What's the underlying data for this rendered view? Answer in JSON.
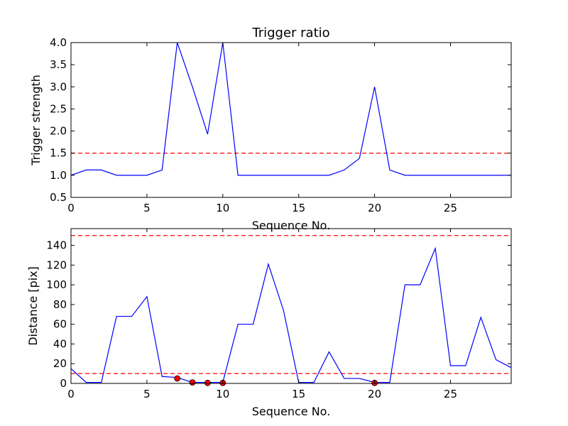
{
  "chart_data": [
    {
      "type": "line",
      "title": "Trigger ratio",
      "xlabel": "Sequence No.",
      "ylabel": "Trigger strength",
      "xlim": [
        0,
        29
      ],
      "ylim": [
        0.5,
        4.0
      ],
      "xticks": [
        "0",
        "5",
        "10",
        "15",
        "20",
        "25"
      ],
      "yticks": [
        "0.5",
        "1.0",
        "1.5",
        "2.0",
        "2.5",
        "3.0",
        "3.5",
        "4.0"
      ],
      "grid": false,
      "series": [
        {
          "color": "#0000ff",
          "x": [
            0,
            1,
            2,
            3,
            4,
            5,
            6,
            7,
            8,
            9,
            10,
            11,
            12,
            13,
            14,
            15,
            16,
            17,
            18,
            19,
            20,
            21,
            22,
            23,
            24,
            25,
            26,
            27,
            28,
            29
          ],
          "y": [
            1.0,
            1.12,
            1.12,
            1.0,
            1.0,
            1.0,
            1.12,
            4.0,
            3.0,
            1.93,
            4.0,
            1.0,
            1.0,
            1.0,
            1.0,
            1.0,
            1.0,
            1.0,
            1.12,
            1.38,
            3.0,
            1.12,
            1.0,
            1.0,
            1.0,
            1.0,
            1.0,
            1.0,
            1.0,
            1.0
          ]
        }
      ],
      "hlines": [
        {
          "y": 1.5,
          "color": "#ff0000",
          "style": "dashed"
        }
      ]
    },
    {
      "type": "line",
      "title": "",
      "xlabel": "Sequence No.",
      "ylabel": "Distance [pix]",
      "xlim": [
        0,
        29
      ],
      "ylim": [
        0,
        157
      ],
      "xticks": [
        "0",
        "5",
        "10",
        "15",
        "20",
        "25"
      ],
      "yticks": [
        "0",
        "20",
        "40",
        "60",
        "80",
        "100",
        "120",
        "140"
      ],
      "grid": false,
      "series": [
        {
          "color": "#0000ff",
          "x": [
            0,
            1,
            2,
            3,
            4,
            5,
            6,
            7,
            8,
            9,
            10,
            11,
            12,
            13,
            14,
            15,
            16,
            17,
            18,
            19,
            20,
            21,
            22,
            23,
            24,
            25,
            26,
            27,
            28,
            29
          ],
          "y": [
            15,
            1,
            1,
            68,
            68,
            88,
            7,
            6,
            1,
            1,
            1,
            60,
            60,
            121,
            74,
            1,
            1,
            32,
            5,
            5,
            1,
            1,
            100,
            100,
            137,
            18,
            18,
            67,
            24,
            16
          ]
        }
      ],
      "points": {
        "color": "#ff0000",
        "x": [
          7,
          8,
          9,
          10,
          20
        ],
        "y": [
          5,
          1,
          0.5,
          0.5,
          0.5
        ]
      },
      "hlines": [
        {
          "y": 150,
          "color": "#ff0000",
          "style": "dashed"
        },
        {
          "y": 10,
          "color": "#ff0000",
          "style": "dashed"
        }
      ]
    }
  ]
}
